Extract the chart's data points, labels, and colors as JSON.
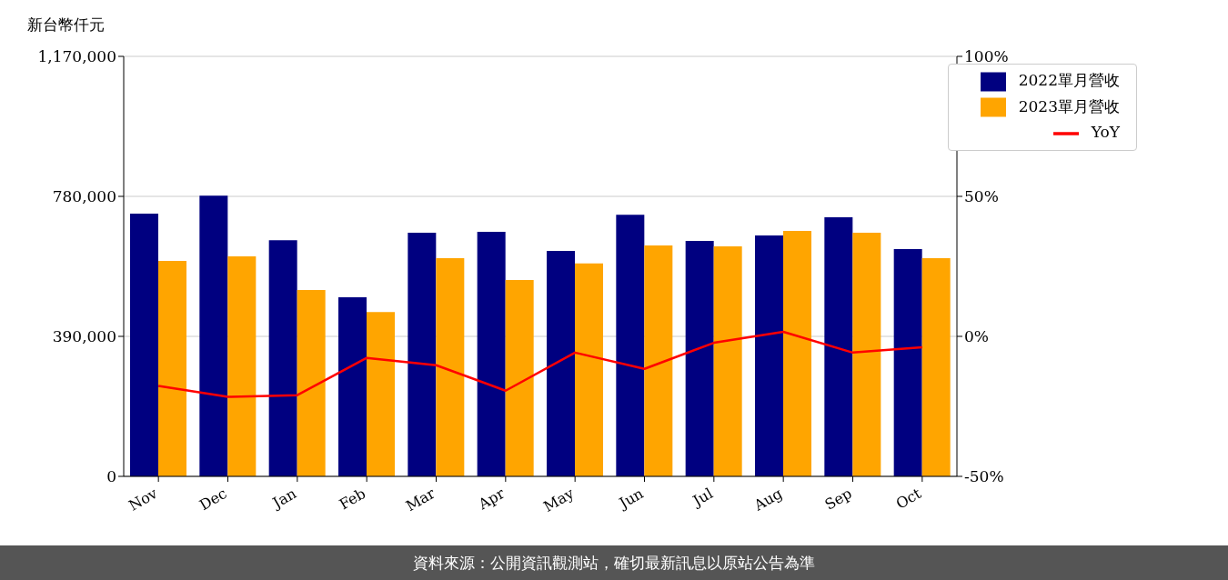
{
  "chart_data": {
    "type": "bar",
    "ylabel": "新台幣仟元",
    "categories": [
      "Nov",
      "Dec",
      "Jan",
      "Feb",
      "Mar",
      "Apr",
      "May",
      "Jun",
      "Jul",
      "Aug",
      "Sep",
      "Oct"
    ],
    "series": [
      {
        "name": "2022單月營收",
        "color": "#000080",
        "values": [
          732000,
          782000,
          658000,
          499000,
          679000,
          681000,
          628000,
          729000,
          656000,
          671000,
          722000,
          633000
        ]
      },
      {
        "name": "2023單月營收",
        "color": "#ffa500",
        "values": [
          600000,
          613000,
          519000,
          458000,
          608000,
          547000,
          593000,
          643000,
          641000,
          684000,
          679000,
          608000
        ]
      },
      {
        "name": "YoY",
        "color": "#ff0000",
        "type": "line",
        "axis": "y2",
        "values": [
          -17.7,
          -21.6,
          -21.0,
          -7.7,
          -10.3,
          -19.4,
          -5.8,
          -11.6,
          -2.3,
          1.6,
          -5.8,
          -3.9
        ]
      }
    ],
    "ylim": [
      0,
      1170000
    ],
    "yticks": [
      {
        "value": 0,
        "label": "0"
      },
      {
        "value": 390000,
        "label": "390,000"
      },
      {
        "value": 780000,
        "label": "780,000"
      },
      {
        "value": 1170000,
        "label": "1,170,000"
      }
    ],
    "y2lim": [
      -50,
      100
    ],
    "y2ticks": [
      {
        "value": -50,
        "label": "-50%"
      },
      {
        "value": 0,
        "label": "0%"
      },
      {
        "value": 50,
        "label": "50%"
      },
      {
        "value": 100,
        "label": "100%"
      }
    ],
    "grid": "y",
    "legend": "top right",
    "annotations": [
      "資料來源：公開資訊觀測站，確切最新訊息以原站公告為準"
    ]
  }
}
